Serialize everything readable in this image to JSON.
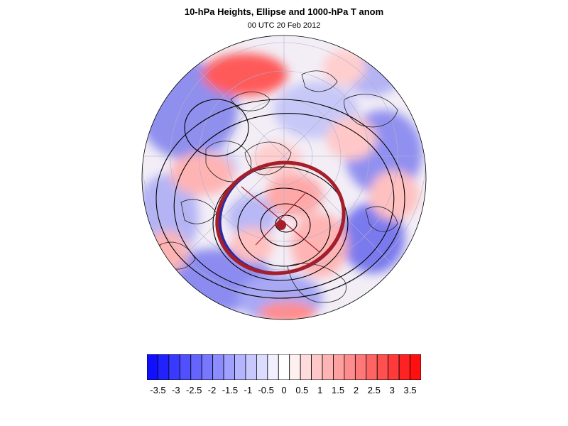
{
  "title": "10-hPa Heights, Ellipse and 1000-hPa T anom",
  "subtitle": "00 UTC 20 Feb 2012",
  "colorbar": {
    "colors": [
      "#1010ff",
      "#2222ff",
      "#3a3aff",
      "#5050ff",
      "#6464ff",
      "#7878ff",
      "#8c8cff",
      "#a0a0ff",
      "#b4b4ff",
      "#c8c8ff",
      "#dcdcff",
      "#f0f0ff",
      "#ffffff",
      "#fff0f0",
      "#ffdcdc",
      "#ffc8c8",
      "#ffb4b4",
      "#ffa0a0",
      "#ff8c8c",
      "#ff7878",
      "#ff6464",
      "#ff5050",
      "#ff3a3a",
      "#ff2222",
      "#ff1010"
    ],
    "labels": [
      "-3.5",
      "-3",
      "-2.5",
      "-2",
      "-1.5",
      "-1",
      "-0.5",
      "0",
      "0.5",
      "1",
      "1.5",
      "2",
      "2.5",
      "3",
      "3.5"
    ]
  },
  "map": {
    "projection": "orthographic-north-polar",
    "ellipse_color": "#a51f2a",
    "ellipse_fill_edge_color": "#2a2aa8",
    "center_dot_color": "#a51f2a",
    "contour_color": "#000000"
  }
}
